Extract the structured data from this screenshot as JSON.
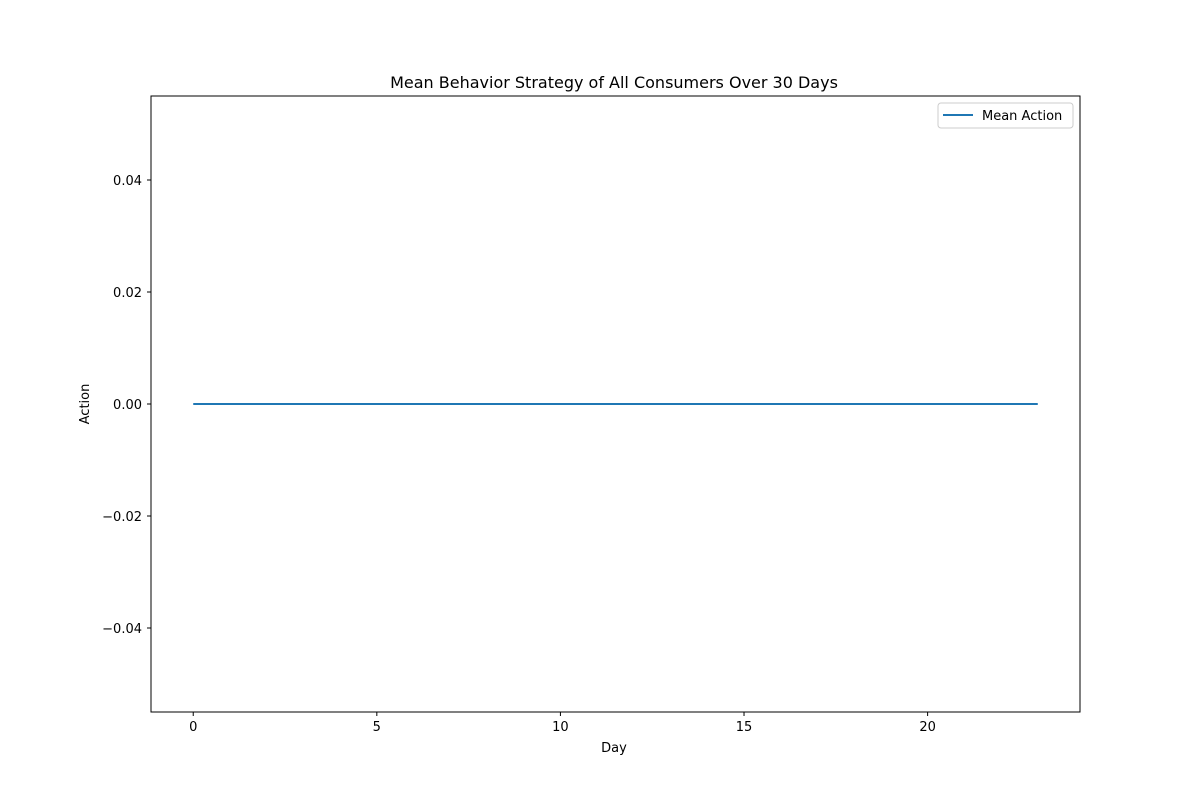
{
  "chart_data": {
    "type": "line",
    "title": "Mean Behavior Strategy of All Consumers Over 30 Days",
    "xlabel": "Day",
    "ylabel": "Action",
    "xlim": [
      -1.15,
      24.15
    ],
    "ylim": [
      -0.055,
      0.055
    ],
    "x_ticks": [
      0,
      5,
      10,
      15,
      20
    ],
    "x_tick_labels": [
      "0",
      "5",
      "10",
      "15",
      "20"
    ],
    "y_ticks": [
      0.04,
      0.02,
      0.0,
      -0.02,
      -0.04
    ],
    "y_tick_labels": [
      "0.04",
      "0.02",
      "0.00",
      "−0.02",
      "−0.04"
    ],
    "grid": false,
    "legend_position": "top-right",
    "x": [
      0,
      1,
      2,
      3,
      4,
      5,
      6,
      7,
      8,
      9,
      10,
      11,
      12,
      13,
      14,
      15,
      16,
      17,
      18,
      19,
      20,
      21,
      22,
      23
    ],
    "series": [
      {
        "name": "Mean Action",
        "color": "#1f77b4",
        "values": [
          0,
          0,
          0,
          0,
          0,
          0,
          0,
          0,
          0,
          0,
          0,
          0,
          0,
          0,
          0,
          0,
          0,
          0,
          0,
          0,
          0,
          0,
          0,
          0
        ]
      }
    ]
  }
}
